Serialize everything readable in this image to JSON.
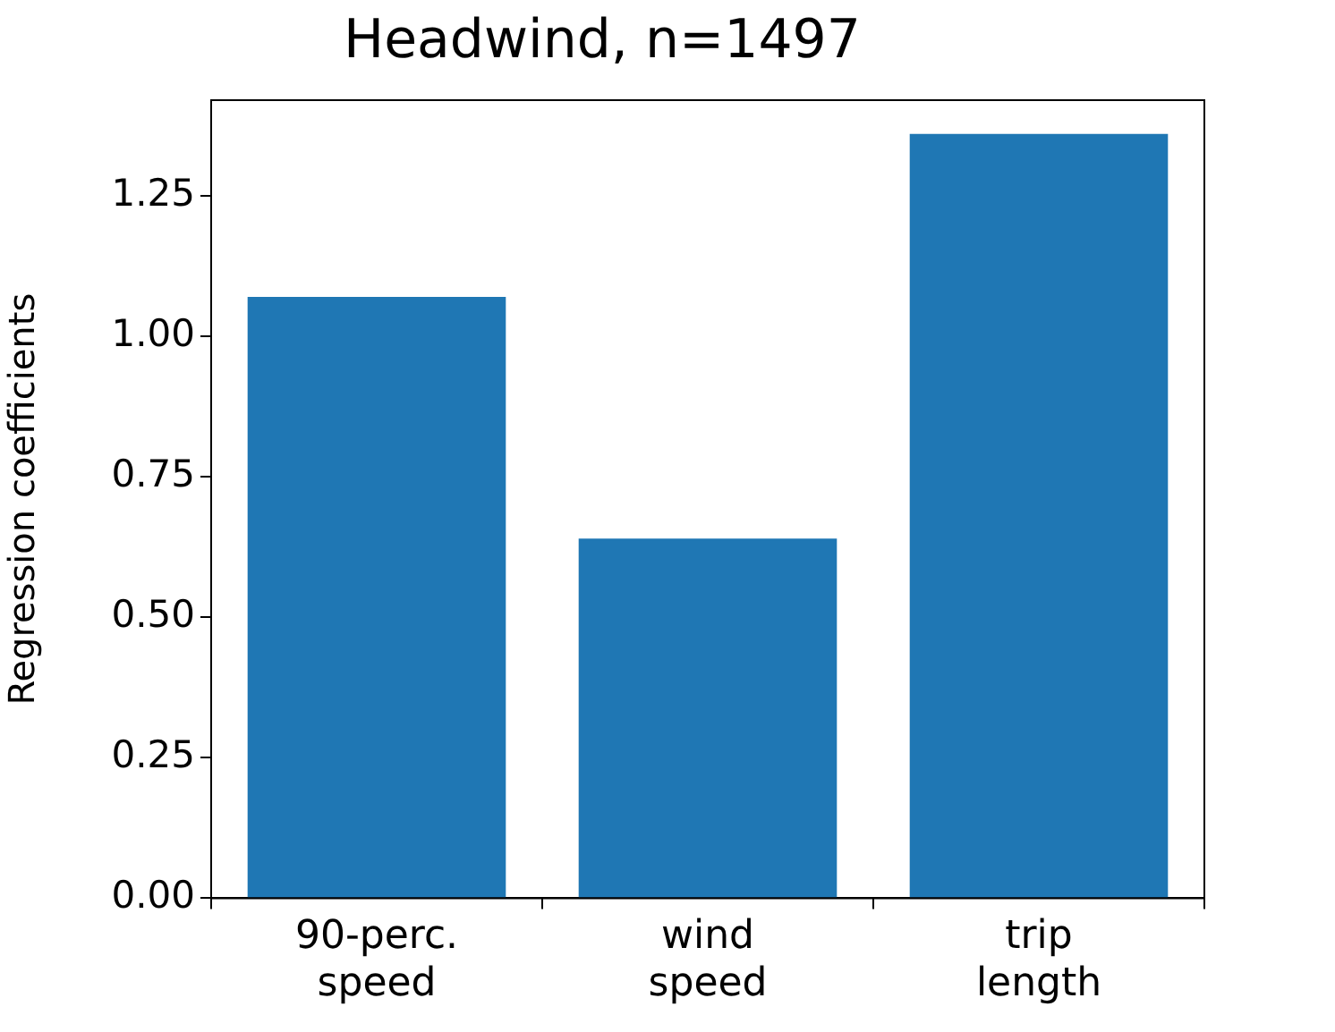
{
  "chart_data": {
    "type": "bar",
    "title": "Headwind, n=1497",
    "ylabel": "Regression coefficients",
    "categories": [
      "90-perc.\nspeed",
      "wind\nspeed",
      "trip\nlength"
    ],
    "values": [
      1.07,
      0.64,
      1.36
    ],
    "color": "#1f77b4",
    "ylim": [
      0,
      1.42
    ],
    "yticks": [
      {
        "value": 0,
        "label": "0.00"
      },
      {
        "value": 0.25,
        "label": "0.25"
      },
      {
        "value": 0.5,
        "label": "0.50"
      },
      {
        "value": 0.75,
        "label": "0.75"
      },
      {
        "value": 1,
        "label": "1.00"
      },
      {
        "value": 1.25,
        "label": "1.25"
      }
    ],
    "grid": false
  }
}
